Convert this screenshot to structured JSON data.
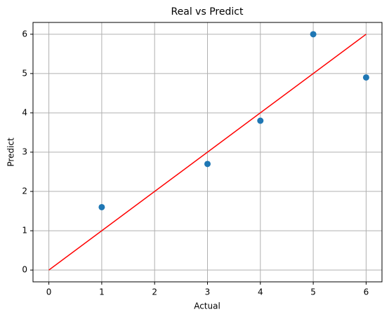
{
  "chart_data": {
    "type": "scatter",
    "title": "Real vs Predict",
    "x_label": "Actual",
    "y_label": "Predict",
    "series": [
      {
        "type": "scatter",
        "color": "#1f77b4",
        "x": [
          1,
          3,
          4,
          5,
          6
        ],
        "values": [
          1.6,
          2.7,
          3.8,
          6.0,
          4.9
        ]
      },
      {
        "type": "line",
        "color": "#ff0000",
        "x": [
          0,
          6
        ],
        "values": [
          0,
          6
        ]
      }
    ],
    "xlim": [
      -0.3,
      6.3
    ],
    "ylim": [
      -0.3,
      6.3
    ],
    "xticks": [
      0,
      1,
      2,
      3,
      4,
      5,
      6
    ],
    "yticks": [
      0,
      1,
      2,
      3,
      4,
      5,
      6
    ],
    "grid": true
  }
}
